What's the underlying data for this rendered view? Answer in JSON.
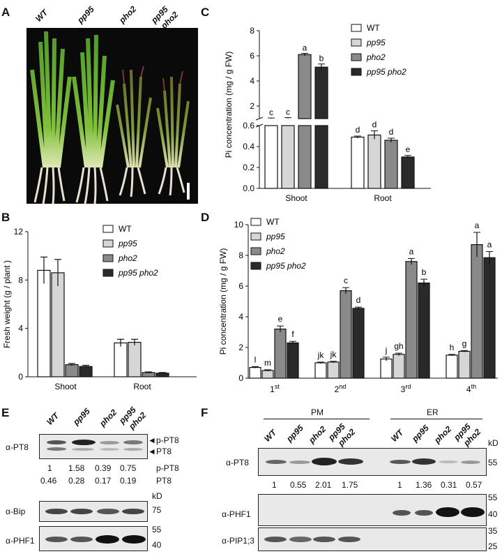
{
  "panelA": {
    "letter": "A",
    "genotypes": [
      "WT",
      "pp95",
      "pho2",
      "pp95",
      "pho2"
    ]
  },
  "panelB": {
    "letter": "B"
  },
  "panelC": {
    "letter": "C"
  },
  "panelD": {
    "letter": "D"
  },
  "panelE": {
    "letter": "E",
    "lanes": [
      "WT",
      "pp95",
      "pho2",
      "pp95",
      "pho2"
    ],
    "row1_label": "α-PT8",
    "band_upper": "p-PT8",
    "band_lower": "PT8",
    "ratio_pPT8": [
      "1",
      "1.58",
      "0.39",
      "0.75"
    ],
    "ratio_PT8": [
      "0.46",
      "0.28",
      "0.17",
      "0.19"
    ],
    "ratio_label_pPT8": "p-PT8",
    "ratio_label_PT8": "PT8",
    "kd_label": "kD",
    "row2_label": "α-Bip",
    "row2_kd": "75",
    "row3_label": "α-PHF1",
    "row3_kd_top": "55",
    "row3_kd_bottom": "40"
  },
  "panelF": {
    "letter": "F",
    "pm_label": "PM",
    "er_label": "ER",
    "lanes": [
      "WT",
      "pp95",
      "pho2",
      "pp95",
      "pho2"
    ],
    "row1_label": "α-PT8",
    "row1_kd": "55",
    "kd_label": "kD",
    "ratios_pm": [
      "1",
      "0.55",
      "2.01",
      "1.75"
    ],
    "ratios_er": [
      "1",
      "1.36",
      "0.31",
      "0.57"
    ],
    "row2_label": "α-PHF1",
    "row2_kd_top": "55",
    "row2_kd_bottom": "40",
    "row3_label": "α-PIP1;3",
    "row3_kd_top": "35",
    "row3_kd_bottom": "25"
  },
  "chart_data": [
    {
      "type": "bar",
      "id": "B",
      "categories": [
        "Shoot",
        "Root"
      ],
      "series": [
        {
          "name": "WT",
          "values": [
            8.8,
            2.8
          ],
          "errors": [
            1.1,
            0.3
          ],
          "color": "#ffffff"
        },
        {
          "name": "pp95",
          "values": [
            8.6,
            2.85
          ],
          "errors": [
            1.1,
            0.25
          ],
          "color": "#d6d6d6"
        },
        {
          "name": "pho2",
          "values": [
            1.0,
            0.35
          ],
          "errors": [
            0.1,
            0.05
          ],
          "color": "#8a8a8a"
        },
        {
          "name": "pp95  pho2",
          "values": [
            0.85,
            0.3
          ],
          "errors": [
            0.1,
            0.05
          ],
          "color": "#2a2a2a"
        }
      ],
      "ylabel": "Fresh weight (g / plant )",
      "ylim": [
        0,
        12
      ],
      "yticks": [
        "0",
        "4",
        "8",
        "12"
      ]
    },
    {
      "type": "bar",
      "id": "C",
      "categories": [
        "Shoot",
        "Root"
      ],
      "series": [
        {
          "name": "WT",
          "values": [
            1.0,
            0.49
          ],
          "errors": [
            0.05,
            0.01
          ],
          "color": "#ffffff",
          "letters": [
            "c",
            "d"
          ]
        },
        {
          "name": "pp95",
          "values": [
            1.0,
            0.51
          ],
          "errors": [
            0.08,
            0.04
          ],
          "color": "#d6d6d6",
          "letters": [
            "c",
            "d"
          ]
        },
        {
          "name": "pho2",
          "values": [
            6.1,
            0.46
          ],
          "errors": [
            0.1,
            0.02
          ],
          "color": "#8a8a8a",
          "letters": [
            "a",
            "d"
          ]
        },
        {
          "name": "pp95 pho2",
          "values": [
            5.1,
            0.3
          ],
          "errors": [
            0.25,
            0.015
          ],
          "color": "#2a2a2a",
          "letters": [
            "b",
            "e"
          ]
        }
      ],
      "ylabel": "Pi concentration  (mg / g FW)",
      "axis_break": true,
      "upper_yticks": [
        "2",
        "4",
        "6",
        "8"
      ],
      "lower_yticks": [
        "0.0",
        "0.2",
        "0.4",
        "0.6"
      ]
    },
    {
      "type": "bar",
      "id": "D",
      "categories": [
        "1",
        "2",
        "3",
        "4"
      ],
      "category_suffix": [
        "st",
        "nd",
        "rd",
        "th"
      ],
      "series": [
        {
          "name": "WT",
          "values": [
            0.7,
            1.0,
            1.25,
            1.5
          ],
          "errors": [
            0.05,
            0.05,
            0.12,
            0.05
          ],
          "color": "#ffffff",
          "letters": [
            "l",
            "jk",
            "j",
            "h"
          ]
        },
        {
          "name": "pp95",
          "values": [
            0.5,
            1.05,
            1.55,
            1.75
          ],
          "errors": [
            0.05,
            0.05,
            0.08,
            0.05
          ],
          "color": "#d6d6d6",
          "letters": [
            "m",
            "jk",
            "gh",
            "g"
          ]
        },
        {
          "name": "pho2",
          "values": [
            3.2,
            5.7,
            7.6,
            8.7
          ],
          "errors": [
            0.2,
            0.2,
            0.2,
            0.8
          ],
          "color": "#8a8a8a",
          "letters": [
            "e",
            "c",
            "a",
            "a"
          ]
        },
        {
          "name": "pp95 pho2",
          "values": [
            2.3,
            4.55,
            6.2,
            7.85
          ],
          "errors": [
            0.1,
            0.08,
            0.25,
            0.4
          ],
          "color": "#2a2a2a",
          "letters": [
            "f",
            "d",
            "b",
            "a"
          ]
        }
      ],
      "ylabel": "Pi concentration (mg / g FW)",
      "ylim": [
        0,
        10
      ],
      "yticks": [
        "0",
        "2",
        "4",
        "6",
        "8",
        "10"
      ]
    }
  ]
}
